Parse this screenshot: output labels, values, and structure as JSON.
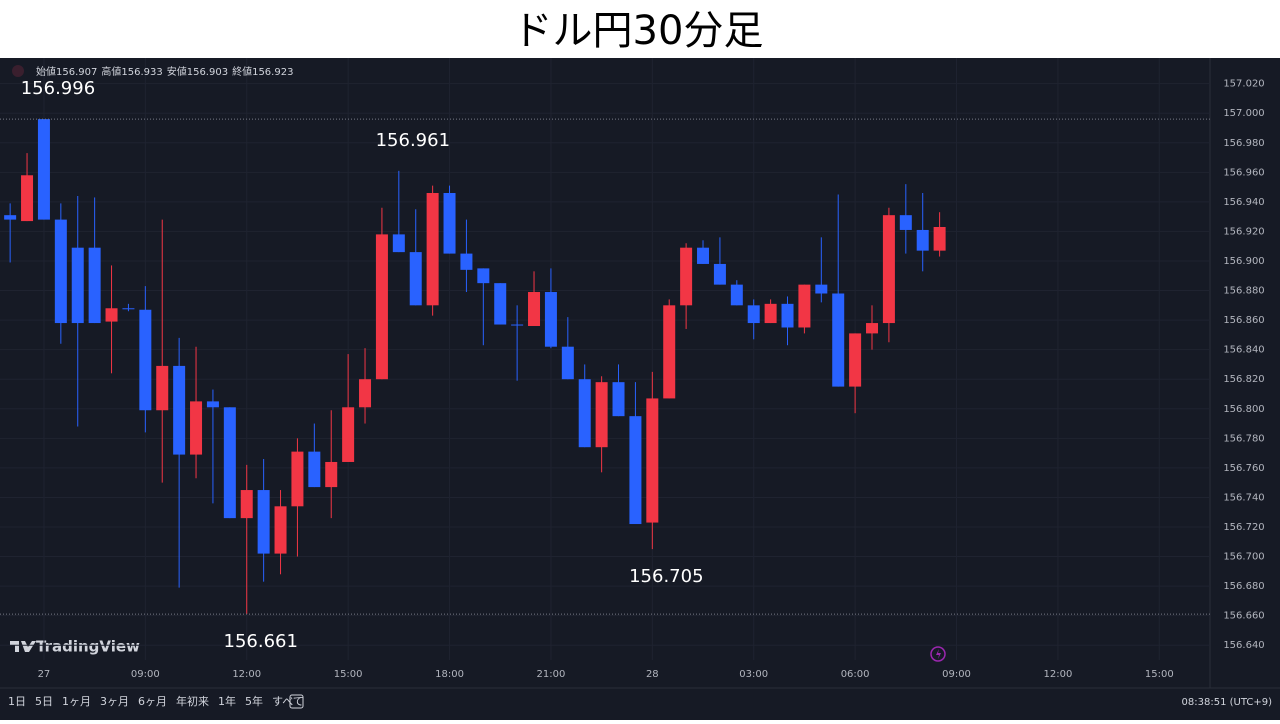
{
  "header": {
    "title": "ドル円30分足"
  },
  "chart_data": {
    "type": "candlestick",
    "ohlc_labels": [
      "始値",
      "高値",
      "安値",
      "終値"
    ],
    "x": [
      0,
      1,
      2,
      3,
      4,
      5,
      6,
      7,
      8,
      9,
      10,
      11,
      12,
      13,
      14,
      15,
      16,
      17,
      18,
      19,
      20,
      21,
      22,
      23,
      24,
      25,
      26,
      27,
      28,
      29,
      30,
      31,
      32,
      33,
      34,
      35,
      36,
      37,
      38,
      39,
      40,
      41,
      42,
      43,
      44,
      45,
      46,
      47,
      48,
      49,
      50,
      51,
      52,
      53,
      54,
      55
    ],
    "open": [
      156.931,
      156.927,
      156.996,
      156.928,
      156.909,
      156.909,
      156.859,
      156.868,
      156.867,
      156.799,
      156.829,
      156.769,
      156.805,
      156.801,
      156.726,
      156.745,
      156.702,
      156.734,
      156.771,
      156.747,
      156.764,
      156.801,
      156.82,
      156.918,
      156.906,
      156.87,
      156.946,
      156.905,
      156.895,
      156.885,
      156.857,
      156.856,
      156.879,
      156.842,
      156.82,
      156.774,
      156.818,
      156.795,
      156.723,
      156.807,
      156.87,
      156.909,
      156.898,
      156.884,
      156.87,
      156.858,
      156.871,
      156.855,
      156.884,
      156.878,
      156.815,
      156.851,
      156.858,
      156.931,
      156.921,
      156.907
    ],
    "high": [
      156.939,
      156.973,
      156.996,
      156.939,
      156.944,
      156.943,
      156.897,
      156.871,
      156.883,
      156.928,
      156.848,
      156.842,
      156.813,
      156.801,
      156.762,
      156.766,
      156.745,
      156.78,
      156.79,
      156.799,
      156.837,
      156.841,
      156.936,
      156.961,
      156.935,
      156.951,
      156.951,
      156.928,
      156.895,
      156.885,
      156.87,
      156.893,
      156.895,
      156.862,
      156.83,
      156.822,
      156.83,
      156.818,
      156.825,
      156.874,
      156.912,
      156.914,
      156.916,
      156.887,
      156.874,
      156.874,
      156.876,
      156.884,
      156.916,
      156.945,
      156.851,
      156.87,
      156.936,
      156.952,
      156.946,
      156.933
    ],
    "low": [
      156.899,
      156.927,
      156.928,
      156.844,
      156.788,
      156.858,
      156.824,
      156.866,
      156.784,
      156.75,
      156.679,
      156.753,
      156.736,
      156.726,
      156.661,
      156.683,
      156.688,
      156.7,
      156.747,
      156.726,
      156.764,
      156.79,
      156.82,
      156.906,
      156.87,
      156.863,
      156.905,
      156.879,
      156.843,
      156.857,
      156.819,
      156.856,
      156.841,
      156.82,
      156.774,
      156.757,
      156.795,
      156.722,
      156.705,
      156.807,
      156.854,
      156.898,
      156.884,
      156.87,
      156.847,
      156.858,
      156.843,
      156.851,
      156.872,
      156.815,
      156.797,
      156.84,
      156.845,
      156.905,
      156.893,
      156.903
    ],
    "close": [
      156.928,
      156.958,
      156.928,
      156.858,
      156.858,
      156.858,
      156.868,
      156.868,
      156.799,
      156.829,
      156.769,
      156.805,
      156.801,
      156.726,
      156.745,
      156.702,
      156.734,
      156.771,
      156.747,
      156.764,
      156.801,
      156.82,
      156.918,
      156.906,
      156.87,
      156.946,
      156.905,
      156.894,
      156.885,
      156.857,
      156.857,
      156.879,
      156.842,
      156.82,
      156.774,
      156.818,
      156.795,
      156.722,
      156.807,
      156.87,
      156.909,
      156.898,
      156.884,
      156.87,
      156.858,
      156.871,
      156.855,
      156.884,
      156.878,
      156.815,
      156.851,
      156.858,
      156.931,
      156.921,
      156.907,
      156.923
    ],
    "up_color": "#f23645",
    "down_color": "#2962ff",
    "xlim": [
      -0.6,
      71
    ],
    "xticks": [
      {
        "value": 2,
        "label": "27"
      },
      {
        "value": 8,
        "label": "09:00"
      },
      {
        "value": 14,
        "label": "12:00"
      },
      {
        "value": 20,
        "label": "15:00"
      },
      {
        "value": 26,
        "label": "18:00"
      },
      {
        "value": 32,
        "label": "21:00"
      },
      {
        "value": 38,
        "label": "28"
      },
      {
        "value": 44,
        "label": "03:00"
      },
      {
        "value": 50,
        "label": "06:00"
      },
      {
        "value": 56,
        "label": "09:00"
      },
      {
        "value": 62,
        "label": "12:00"
      },
      {
        "value": 68,
        "label": "15:00"
      }
    ],
    "ylim": [
      156.63,
      157.036
    ],
    "yticks": [
      {
        "value": 156.64,
        "label": "156.640"
      },
      {
        "value": 156.66,
        "label": "156.660"
      },
      {
        "value": 156.68,
        "label": "156.680"
      },
      {
        "value": 156.7,
        "label": "156.700"
      },
      {
        "value": 156.72,
        "label": "156.720"
      },
      {
        "value": 156.74,
        "label": "156.740"
      },
      {
        "value": 156.76,
        "label": "156.760"
      },
      {
        "value": 156.78,
        "label": "156.780"
      },
      {
        "value": 156.8,
        "label": "156.800"
      },
      {
        "value": 156.82,
        "label": "156.820"
      },
      {
        "value": 156.84,
        "label": "156.840"
      },
      {
        "value": 156.86,
        "label": "156.860"
      },
      {
        "value": 156.88,
        "label": "156.880"
      },
      {
        "value": 156.9,
        "label": "156.900"
      },
      {
        "value": 156.92,
        "label": "156.920"
      },
      {
        "value": 156.94,
        "label": "156.940"
      },
      {
        "value": 156.96,
        "label": "156.960"
      },
      {
        "value": 156.98,
        "label": "156.980"
      },
      {
        "value": 157.0,
        "label": "157.000"
      },
      {
        "value": 157.02,
        "label": "157.020"
      }
    ],
    "grid": true,
    "annotations": [
      {
        "text": "156.996",
        "value": 156.996
      },
      {
        "text": "156.961",
        "value": 156.961
      },
      {
        "text": "156.705",
        "value": 156.705
      },
      {
        "text": "156.661",
        "value": 156.661
      }
    ]
  },
  "logo": "TradingView",
  "toolbar": {
    "ranges": [
      "1日",
      "5日",
      "1ヶ月",
      "3ヶ月",
      "6ヶ月",
      "年初来",
      "1年",
      "5年",
      "すべて"
    ],
    "clock": "08:38:51 (UTC+9)"
  }
}
